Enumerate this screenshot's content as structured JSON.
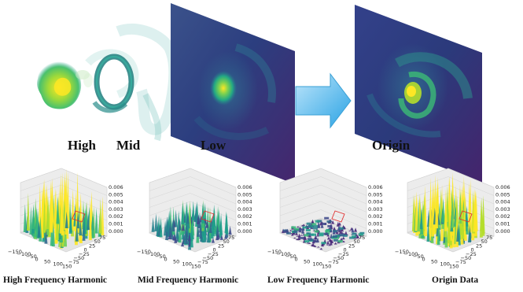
{
  "top": {
    "labels": {
      "high": "High",
      "mid": "Mid",
      "low": "Low",
      "origin": "Origin"
    }
  },
  "bottom": {
    "labels": {
      "high": "High Frequency Harmonic",
      "mid": "Mid Frequency Harmonic",
      "low": "Low Frequency Harmonic",
      "origin": "Origin Data"
    },
    "z_ticks": [
      "0.006",
      "0.005",
      "0.004",
      "0.003",
      "0.002",
      "0.001",
      "0.000"
    ],
    "x_ticks": [
      "−150",
      "−100",
      "−50",
      "0",
      "50",
      "100",
      "150"
    ],
    "y_ticks": [
      "75",
      "50",
      "25",
      "0",
      "−25",
      "−50",
      "−75"
    ]
  },
  "colors": {
    "viridis_dark": "#440154",
    "viridis_mid": "#21918c",
    "viridis_light": "#fde725",
    "arrow": "#4fb3e8"
  }
}
